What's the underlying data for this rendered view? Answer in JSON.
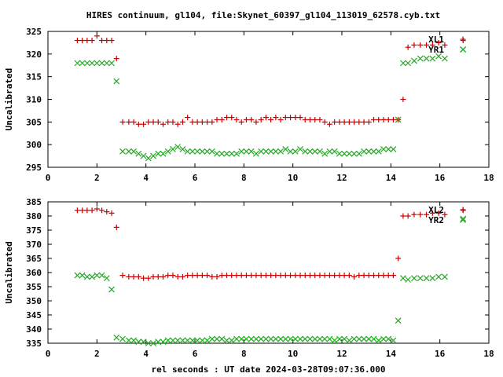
{
  "title": "HIRES continuum, gl104, file:Skynet_60397_gl104_113019_62578.cyb.txt",
  "colors": {
    "series_plus": "#cc0000",
    "series_x": "#22aa22",
    "axis": "#000000"
  },
  "chart_data": [
    {
      "type": "scatter",
      "ylabel": "Uncalibrated",
      "xlabel": "",
      "xlim": [
        0,
        18
      ],
      "ylim": [
        295,
        325
      ],
      "xticks": [
        0,
        2,
        4,
        6,
        8,
        10,
        12,
        14,
        16,
        18
      ],
      "yticks": [
        295,
        300,
        305,
        310,
        315,
        320,
        325
      ],
      "legend_placement": "top-right",
      "series": [
        {
          "name": "XL1",
          "marker": "plus",
          "x": [
            1.2,
            1.4,
            1.6,
            1.8,
            2.0,
            2.2,
            2.4,
            2.6,
            2.8,
            3.05,
            3.3,
            3.5,
            3.7,
            3.9,
            4.1,
            4.3,
            4.5,
            4.7,
            4.9,
            5.1,
            5.3,
            5.5,
            5.7,
            5.9,
            6.1,
            6.3,
            6.5,
            6.7,
            6.9,
            7.1,
            7.3,
            7.5,
            7.7,
            7.9,
            8.1,
            8.3,
            8.5,
            8.7,
            8.9,
            9.1,
            9.3,
            9.5,
            9.7,
            9.9,
            10.1,
            10.3,
            10.5,
            10.7,
            10.9,
            11.1,
            11.3,
            11.5,
            11.7,
            11.9,
            12.1,
            12.3,
            12.5,
            12.7,
            12.9,
            13.1,
            13.3,
            13.5,
            13.7,
            13.9,
            14.1,
            14.3,
            14.5,
            14.7,
            14.95,
            15.2,
            15.45,
            15.7,
            15.95,
            16.2,
            16.95
          ],
          "y": [
            323,
            323,
            323,
            323,
            324,
            323,
            323,
            323,
            319,
            305,
            305,
            305,
            304.5,
            304.5,
            305,
            305,
            305,
            304.5,
            305,
            305,
            304.5,
            305,
            306,
            305,
            305,
            305,
            305,
            305,
            305.5,
            305.5,
            306,
            306,
            305.5,
            305,
            305.5,
            305.5,
            305,
            305.5,
            306,
            305.5,
            306,
            305.5,
            306,
            306,
            306,
            306,
            305.5,
            305.5,
            305.5,
            305.5,
            305,
            304.5,
            305,
            305,
            305,
            305,
            305,
            305,
            305,
            305,
            305.5,
            305.5,
            305.5,
            305.5,
            305.5,
            305.5,
            310,
            321.5,
            322,
            322,
            322,
            322,
            322.5,
            322,
            323
          ]
        },
        {
          "name": "YR1",
          "marker": "x",
          "x": [
            1.2,
            1.4,
            1.6,
            1.8,
            2.0,
            2.2,
            2.4,
            2.6,
            2.8,
            3.05,
            3.3,
            3.5,
            3.7,
            3.9,
            4.1,
            4.3,
            4.5,
            4.7,
            4.9,
            5.1,
            5.3,
            5.5,
            5.7,
            5.9,
            6.1,
            6.3,
            6.5,
            6.7,
            6.9,
            7.1,
            7.3,
            7.5,
            7.7,
            7.9,
            8.1,
            8.3,
            8.5,
            8.7,
            8.9,
            9.1,
            9.3,
            9.5,
            9.7,
            9.9,
            10.1,
            10.3,
            10.5,
            10.7,
            10.9,
            11.1,
            11.3,
            11.5,
            11.7,
            11.9,
            12.1,
            12.3,
            12.5,
            12.7,
            12.9,
            13.1,
            13.3,
            13.5,
            13.7,
            13.9,
            14.1,
            14.3,
            14.5,
            14.7,
            14.95,
            15.2,
            15.45,
            15.7,
            15.95,
            16.2,
            16.95
          ],
          "y": [
            318,
            318,
            318,
            318,
            318,
            318,
            318,
            318,
            314,
            298.5,
            298.5,
            298.5,
            298,
            297.5,
            297,
            297.5,
            298,
            298,
            298.5,
            299,
            299.5,
            299,
            298.5,
            298.5,
            298.5,
            298.5,
            298.5,
            298.5,
            298,
            298,
            298,
            298,
            298,
            298.5,
            298.5,
            298.5,
            298,
            298.5,
            298.5,
            298.5,
            298.5,
            298.5,
            299,
            298.5,
            298.5,
            299,
            298.5,
            298.5,
            298.5,
            298.5,
            298,
            298.5,
            298.5,
            298,
            298,
            298,
            298,
            298,
            298.5,
            298.5,
            298.5,
            298.5,
            299,
            299,
            299,
            305.5,
            318,
            318,
            318.5,
            319,
            319,
            319,
            319.5,
            319,
            321
          ]
        }
      ]
    },
    {
      "type": "scatter",
      "ylabel": "Uncalibrated",
      "xlabel": "rel seconds : UT date 2024-03-28T09:07:36.000",
      "xlim": [
        0,
        18
      ],
      "ylim": [
        335,
        385
      ],
      "xticks": [
        0,
        2,
        4,
        6,
        8,
        10,
        12,
        14,
        16,
        18
      ],
      "yticks": [
        335,
        340,
        345,
        350,
        355,
        360,
        365,
        370,
        375,
        380,
        385
      ],
      "legend_placement": "top-right",
      "series": [
        {
          "name": "XL2",
          "marker": "plus",
          "x": [
            1.2,
            1.4,
            1.6,
            1.8,
            2.0,
            2.2,
            2.4,
            2.6,
            2.8,
            3.05,
            3.3,
            3.5,
            3.7,
            3.9,
            4.1,
            4.3,
            4.5,
            4.7,
            4.9,
            5.1,
            5.3,
            5.5,
            5.7,
            5.9,
            6.1,
            6.3,
            6.5,
            6.7,
            6.9,
            7.1,
            7.3,
            7.5,
            7.7,
            7.9,
            8.1,
            8.3,
            8.5,
            8.7,
            8.9,
            9.1,
            9.3,
            9.5,
            9.7,
            9.9,
            10.1,
            10.3,
            10.5,
            10.7,
            10.9,
            11.1,
            11.3,
            11.5,
            11.7,
            11.9,
            12.1,
            12.3,
            12.5,
            12.7,
            12.9,
            13.1,
            13.3,
            13.5,
            13.7,
            13.9,
            14.1,
            14.3,
            14.5,
            14.7,
            14.95,
            15.2,
            15.45,
            15.7,
            15.95,
            16.2,
            16.95
          ],
          "y": [
            382,
            382,
            382,
            382,
            382.5,
            382,
            381.5,
            381,
            376,
            359,
            358.5,
            358.5,
            358.5,
            358,
            358,
            358.5,
            358.5,
            358.5,
            359,
            359,
            358.5,
            358.5,
            359,
            359,
            359,
            359,
            359,
            358.5,
            358.5,
            359,
            359,
            359,
            359,
            359,
            359,
            359,
            359,
            359,
            359,
            359,
            359,
            359,
            359,
            359,
            359,
            359,
            359,
            359,
            359,
            359,
            359,
            359,
            359,
            359,
            359,
            359,
            358.5,
            359,
            359,
            359,
            359,
            359,
            359,
            359,
            359,
            365,
            380,
            380,
            380.5,
            380.5,
            380.5,
            381,
            381,
            380.5,
            382
          ]
        },
        {
          "name": "YR2",
          "marker": "x",
          "x": [
            1.2,
            1.4,
            1.6,
            1.8,
            2.0,
            2.2,
            2.4,
            2.6,
            2.8,
            3.05,
            3.3,
            3.5,
            3.7,
            3.9,
            4.1,
            4.3,
            4.5,
            4.7,
            4.9,
            5.1,
            5.3,
            5.5,
            5.7,
            5.9,
            6.1,
            6.3,
            6.5,
            6.7,
            6.9,
            7.1,
            7.3,
            7.5,
            7.7,
            7.9,
            8.1,
            8.3,
            8.5,
            8.7,
            8.9,
            9.1,
            9.3,
            9.5,
            9.7,
            9.9,
            10.1,
            10.3,
            10.5,
            10.7,
            10.9,
            11.1,
            11.3,
            11.5,
            11.7,
            11.9,
            12.1,
            12.3,
            12.5,
            12.7,
            12.9,
            13.1,
            13.3,
            13.5,
            13.7,
            13.9,
            14.1,
            14.3,
            14.5,
            14.7,
            14.95,
            15.2,
            15.45,
            15.7,
            15.95,
            16.2,
            16.95
          ],
          "y": [
            359,
            359,
            358.5,
            358.5,
            359,
            359,
            358,
            354,
            337,
            336.5,
            336,
            336,
            335.5,
            335.5,
            335,
            335,
            335.5,
            335.5,
            336,
            336,
            336,
            336,
            336,
            336,
            336,
            336,
            336,
            336.5,
            336.5,
            336.5,
            336,
            336,
            336.5,
            336.5,
            336.5,
            336.5,
            336.5,
            336.5,
            336.5,
            336.5,
            336.5,
            336.5,
            336.5,
            336.5,
            336.5,
            336.5,
            336.5,
            336.5,
            336.5,
            336.5,
            336.5,
            336.5,
            336,
            336.5,
            336.5,
            336,
            336.5,
            336.5,
            336.5,
            336.5,
            336.5,
            336,
            336.5,
            336.5,
            336,
            343,
            358,
            357.5,
            358,
            358,
            358,
            358,
            358.5,
            358.5,
            379
          ]
        }
      ]
    }
  ]
}
